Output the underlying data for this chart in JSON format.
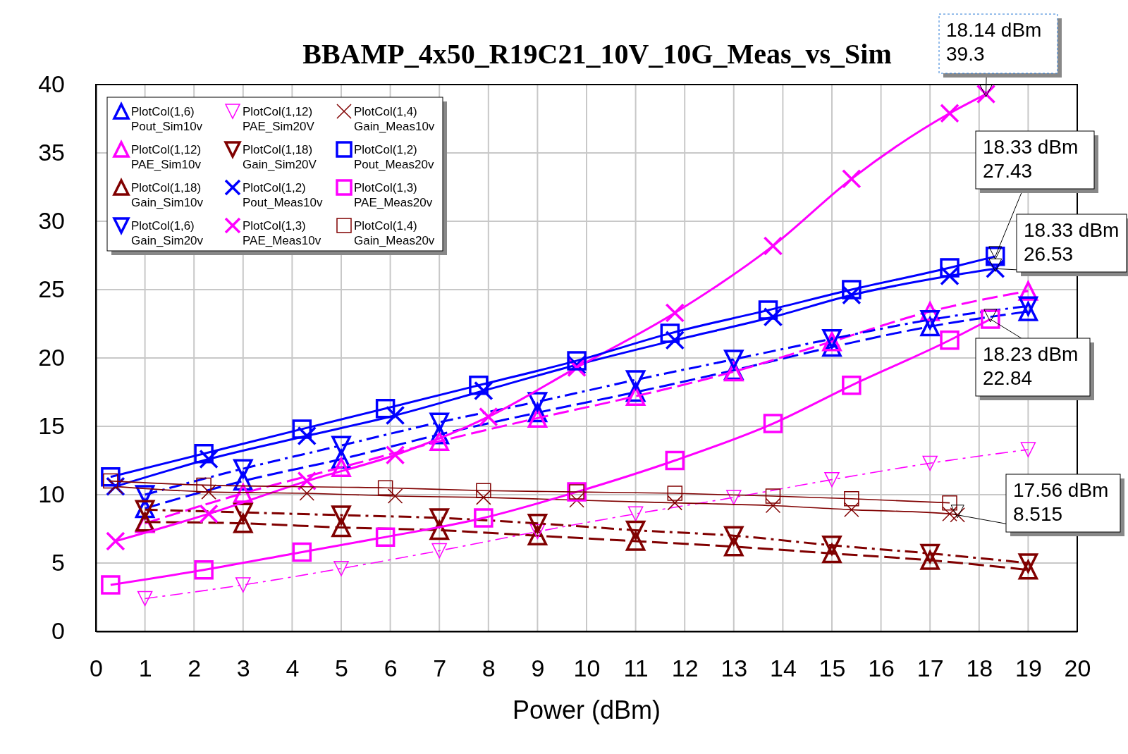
{
  "chart_data": {
    "type": "line",
    "title": "BBAMP_4x50_R19C21_10V_10G_Meas_vs_Sim",
    "xlabel": "Power (dBm)",
    "xlim": [
      0,
      20
    ],
    "xticks": [
      0,
      1,
      2,
      3,
      4,
      5,
      6,
      7,
      8,
      9,
      10,
      11,
      12,
      13,
      14,
      15,
      16,
      17,
      18,
      19,
      20
    ],
    "ylim": [
      0,
      40
    ],
    "yticks": [
      0,
      5,
      10,
      15,
      20,
      25,
      30,
      35,
      40
    ],
    "grid": true,
    "legend": "top left",
    "series": [
      {
        "name": "PlotCol(1,6)\nPout_Sim10v",
        "color": "#0000ff",
        "marker": "triangle",
        "line_style": "dashed",
        "x": [
          1,
          3,
          5,
          7,
          9,
          11,
          13,
          15,
          17,
          19
        ],
        "values": [
          9,
          11,
          12.6,
          14.4,
          16,
          17.5,
          19.1,
          20.8,
          22.3,
          23.4
        ]
      },
      {
        "name": "PlotCol(1,12)\nPAE_Sim10v",
        "color": "#ff00ff",
        "marker": "triangle",
        "line_style": "dashed",
        "x": [
          1,
          3,
          5,
          7,
          9,
          11,
          13,
          15,
          17,
          19
        ],
        "values": [
          7.9,
          10.1,
          12,
          13.9,
          15.6,
          17.2,
          19,
          21.2,
          23.4,
          24.9
        ]
      },
      {
        "name": "PlotCol(1,18)\nGain_Sim10v",
        "color": "#800000",
        "marker": "triangle",
        "line_style": "dashed",
        "x": [
          1,
          3,
          5,
          7,
          9,
          11,
          13,
          15,
          17,
          19
        ],
        "values": [
          8,
          7.9,
          7.6,
          7.4,
          7,
          6.6,
          6.2,
          5.7,
          5.2,
          4.5
        ]
      },
      {
        "name": "PlotCol(1,6)\nGain_Sim20v",
        "color": "#0000ff",
        "marker": "triangle-down",
        "line_style": "dashdot",
        "x": [
          1,
          3,
          5,
          7,
          9,
          11,
          13,
          15,
          17,
          19
        ],
        "values": [
          10,
          11.9,
          13.6,
          15.3,
          16.8,
          18.4,
          19.9,
          21.4,
          22.8,
          23.8
        ]
      },
      {
        "name": "PlotCol(1,12)\nPAE_Sim20V",
        "color": "#ff00ff",
        "marker": "triangle-down",
        "line_style": "dashdot",
        "x": [
          1,
          3,
          5,
          7,
          9,
          11,
          13,
          15,
          17,
          19
        ],
        "values": [
          2.4,
          3.4,
          4.6,
          5.9,
          7.3,
          8.6,
          9.8,
          11.1,
          12.3,
          13.3
        ]
      },
      {
        "name": "PlotCol(1,18)\nGain_Sim20V",
        "color": "#800000",
        "marker": "triangle-down",
        "line_style": "dashdot",
        "x": [
          1,
          3,
          5,
          7,
          9,
          11,
          13,
          15,
          17,
          19
        ],
        "values": [
          8.9,
          8.7,
          8.5,
          8.3,
          7.9,
          7.4,
          7,
          6.3,
          5.7,
          5
        ]
      },
      {
        "name": "PlotCol(1,2)\nPout_Meas10v",
        "color": "#0000ff",
        "marker": "cross",
        "line_style": "solid",
        "x": [
          0.4,
          2.3,
          4.3,
          6.1,
          7.9,
          9.8,
          11.8,
          13.8,
          15.4,
          17.4,
          18.33
        ],
        "values": [
          10.6,
          12.6,
          14.3,
          15.8,
          17.6,
          19.5,
          21.3,
          23,
          24.6,
          26,
          26.53
        ]
      },
      {
        "name": "PlotCol(1,3)\nPAE_Meas10v",
        "color": "#ff00ff",
        "marker": "cross",
        "line_style": "solid",
        "x": [
          0.4,
          2.3,
          4.3,
          6.1,
          8,
          9.8,
          11.8,
          13.8,
          15.4,
          17.4,
          18.14
        ],
        "values": [
          6.6,
          8.6,
          11,
          12.9,
          15.7,
          19.3,
          23.3,
          28.2,
          33.1,
          37.9,
          39.3
        ]
      },
      {
        "name": "PlotCol(1,4)\nGain_Meas10v",
        "color": "#800000",
        "marker": "cross",
        "line_style": "solid",
        "x": [
          0.4,
          2.3,
          4.3,
          6.1,
          7.9,
          9.8,
          11.8,
          13.8,
          15.4,
          17.4,
          17.56
        ],
        "values": [
          10.6,
          10.2,
          10.1,
          9.9,
          9.8,
          9.6,
          9.4,
          9.2,
          8.9,
          8.6,
          8.515
        ]
      },
      {
        "name": "PlotCol(1,2)\nPout_Meas20v",
        "color": "#0000ff",
        "marker": "square",
        "line_style": "solid",
        "x": [
          0.3,
          2.2,
          4.2,
          5.9,
          7.8,
          9.8,
          11.7,
          13.7,
          15.4,
          17.4,
          18.33
        ],
        "values": [
          11.3,
          13,
          14.8,
          16.3,
          18,
          19.8,
          21.8,
          23.5,
          25,
          26.6,
          27.43
        ]
      },
      {
        "name": "PlotCol(1,3)\nPAE_Meas20v",
        "color": "#ff00ff",
        "marker": "square",
        "line_style": "solid",
        "x": [
          0.3,
          2.2,
          4.2,
          5.9,
          7.9,
          9.8,
          11.8,
          13.8,
          15.4,
          17.4,
          18.23
        ],
        "values": [
          3.4,
          4.5,
          5.8,
          6.9,
          8.3,
          10.2,
          12.5,
          15.2,
          18,
          21.3,
          22.84
        ]
      },
      {
        "name": "PlotCol(1,4)\nGain_Meas20v",
        "color": "#800000",
        "marker": "square",
        "line_style": "solid",
        "x": [
          0.3,
          2.2,
          5.9,
          7.9,
          9.8,
          11.8,
          13.8,
          15.4,
          17.4
        ],
        "values": [
          11,
          10.7,
          10.5,
          10.3,
          10.2,
          10.1,
          9.9,
          9.7,
          9.4
        ]
      }
    ],
    "annotations": [
      {
        "text": "18.14 dBm\n39.3",
        "x": 18.14,
        "y": 39.3
      },
      {
        "text": "18.33 dBm\n27.43",
        "x": 18.33,
        "y": 27.43
      },
      {
        "text": "18.33 dBm\n26.53",
        "x": 18.33,
        "y": 26.53
      },
      {
        "text": "18.23 dBm\n22.84",
        "x": 18.23,
        "y": 22.84
      },
      {
        "text": "17.56 dBm\n8.515",
        "x": 17.56,
        "y": 8.515
      }
    ]
  }
}
